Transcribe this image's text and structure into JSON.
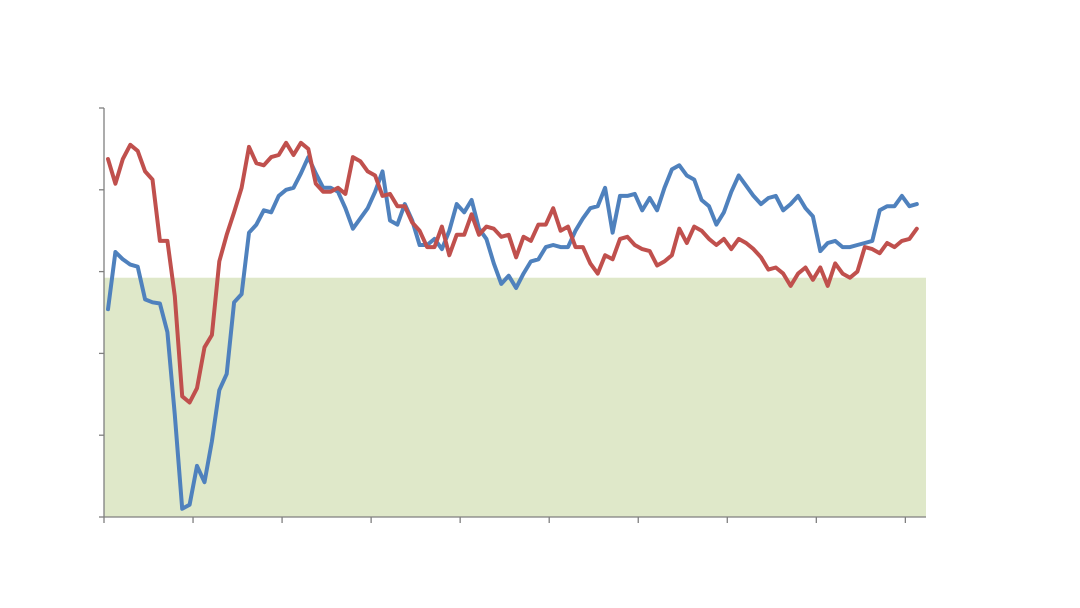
{
  "chart_data": {
    "type": "line",
    "title": "",
    "xlabel": "",
    "ylabel": "",
    "x_range": [
      0,
      110
    ],
    "x_ticks": [
      0,
      12,
      24,
      36,
      48,
      60,
      72,
      84,
      96,
      108
    ],
    "ylim": [
      0,
      100
    ],
    "y_ticks": [
      0,
      20,
      40,
      60,
      80,
      100
    ],
    "grid": false,
    "legend": "none",
    "shaded_band": {
      "y_from": 0,
      "y_to": 58.5,
      "color": "#dfe8c9"
    },
    "axis_color": "#7f7f7f",
    "series": [
      {
        "color": "#4f81bd",
        "points": [
          [
            0,
            50.8
          ],
          [
            1,
            64.8
          ],
          [
            2,
            63.0
          ],
          [
            3,
            61.7
          ],
          [
            4,
            61.2
          ],
          [
            5,
            53.2
          ],
          [
            6,
            52.5
          ],
          [
            7,
            52.2
          ],
          [
            8,
            45.2
          ],
          [
            9,
            25.0
          ],
          [
            10,
            2.0
          ],
          [
            11,
            3.0
          ],
          [
            12,
            12.5
          ],
          [
            13,
            8.5
          ],
          [
            14,
            18.5
          ],
          [
            15,
            31.0
          ],
          [
            16,
            35.0
          ],
          [
            17,
            52.5
          ],
          [
            18,
            54.5
          ],
          [
            19,
            69.5
          ],
          [
            20,
            71.5
          ],
          [
            21,
            75.0
          ],
          [
            22,
            74.5
          ],
          [
            23,
            78.5
          ],
          [
            24,
            80.0
          ],
          [
            25,
            80.5
          ],
          [
            26,
            84.0
          ],
          [
            27,
            88.0
          ],
          [
            28,
            84.0
          ],
          [
            29,
            80.5
          ],
          [
            30,
            80.5
          ],
          [
            31,
            79.5
          ],
          [
            32,
            75.5
          ],
          [
            33,
            70.5
          ],
          [
            34,
            73.0
          ],
          [
            35,
            75.5
          ],
          [
            36,
            79.5
          ],
          [
            37,
            84.5
          ],
          [
            38,
            72.5
          ],
          [
            39,
            71.5
          ],
          [
            40,
            76.5
          ],
          [
            41,
            72.5
          ],
          [
            42,
            66.5
          ],
          [
            43,
            66.5
          ],
          [
            44,
            68.0
          ],
          [
            45,
            65.5
          ],
          [
            46,
            70.0
          ],
          [
            47,
            76.5
          ],
          [
            48,
            74.5
          ],
          [
            49,
            77.5
          ],
          [
            50,
            70.5
          ],
          [
            51,
            68.0
          ],
          [
            52,
            62.0
          ],
          [
            53,
            57.0
          ],
          [
            54,
            59.0
          ],
          [
            55,
            56.0
          ],
          [
            56,
            59.5
          ],
          [
            57,
            62.5
          ],
          [
            58,
            63.0
          ],
          [
            59,
            66.0
          ],
          [
            60,
            66.5
          ],
          [
            61,
            66.0
          ],
          [
            62,
            66.0
          ],
          [
            63,
            70.0
          ],
          [
            64,
            73.0
          ],
          [
            65,
            75.5
          ],
          [
            66,
            76.0
          ],
          [
            67,
            80.5
          ],
          [
            68,
            69.5
          ],
          [
            69,
            78.5
          ],
          [
            70,
            78.5
          ],
          [
            71,
            79.0
          ],
          [
            72,
            75.0
          ],
          [
            73,
            78.0
          ],
          [
            74,
            75.0
          ],
          [
            75,
            80.5
          ],
          [
            76,
            85.0
          ],
          [
            77,
            86.0
          ],
          [
            78,
            83.5
          ],
          [
            79,
            82.5
          ],
          [
            80,
            77.5
          ],
          [
            81,
            76.0
          ],
          [
            82,
            71.5
          ],
          [
            83,
            74.5
          ],
          [
            84,
            79.5
          ],
          [
            85,
            83.5
          ],
          [
            86,
            81.0
          ],
          [
            87,
            78.5
          ],
          [
            88,
            76.5
          ],
          [
            89,
            78.0
          ],
          [
            90,
            78.5
          ],
          [
            91,
            75.0
          ],
          [
            92,
            76.5
          ],
          [
            93,
            78.5
          ],
          [
            94,
            75.5
          ],
          [
            95,
            73.5
          ],
          [
            96,
            65.0
          ],
          [
            97,
            67.0
          ],
          [
            98,
            67.5
          ],
          [
            99,
            66.0
          ],
          [
            100,
            66.0
          ],
          [
            101,
            66.5
          ],
          [
            102,
            67.0
          ],
          [
            103,
            67.5
          ],
          [
            104,
            75.0
          ],
          [
            105,
            76.0
          ],
          [
            106,
            76.0
          ],
          [
            107,
            78.5
          ],
          [
            108,
            76.0
          ],
          [
            109,
            76.5
          ]
        ]
      },
      {
        "color": "#c0504d",
        "points": [
          [
            0,
            87.5
          ],
          [
            1,
            81.5
          ],
          [
            2,
            87.5
          ],
          [
            3,
            91.0
          ],
          [
            4,
            89.5
          ],
          [
            5,
            84.5
          ],
          [
            6,
            82.5
          ],
          [
            7,
            67.5
          ],
          [
            8,
            67.5
          ],
          [
            9,
            54.0
          ],
          [
            10,
            29.5
          ],
          [
            11,
            28.0
          ],
          [
            12,
            31.5
          ],
          [
            13,
            41.5
          ],
          [
            14,
            44.5
          ],
          [
            15,
            62.5
          ],
          [
            16,
            69.0
          ],
          [
            17,
            74.5
          ],
          [
            18,
            80.5
          ],
          [
            19,
            90.5
          ],
          [
            20,
            86.5
          ],
          [
            21,
            86.0
          ],
          [
            22,
            88.0
          ],
          [
            23,
            88.5
          ],
          [
            24,
            91.5
          ],
          [
            25,
            88.5
          ],
          [
            26,
            91.5
          ],
          [
            27,
            90.0
          ],
          [
            28,
            81.5
          ],
          [
            29,
            79.5
          ],
          [
            30,
            79.5
          ],
          [
            31,
            80.5
          ],
          [
            32,
            79.0
          ],
          [
            33,
            88.0
          ],
          [
            34,
            87.0
          ],
          [
            35,
            84.5
          ],
          [
            36,
            83.5
          ],
          [
            37,
            78.5
          ],
          [
            38,
            79.0
          ],
          [
            39,
            76.0
          ],
          [
            40,
            76.0
          ],
          [
            41,
            72.0
          ],
          [
            42,
            70.0
          ],
          [
            43,
            66.0
          ],
          [
            44,
            66.0
          ],
          [
            45,
            71.0
          ],
          [
            46,
            64.0
          ],
          [
            47,
            69.0
          ],
          [
            48,
            69.0
          ],
          [
            49,
            74.0
          ],
          [
            50,
            69.0
          ],
          [
            51,
            71.0
          ],
          [
            52,
            70.5
          ],
          [
            53,
            68.5
          ],
          [
            54,
            69.0
          ],
          [
            55,
            63.5
          ],
          [
            56,
            68.5
          ],
          [
            57,
            67.5
          ],
          [
            58,
            71.5
          ],
          [
            59,
            71.5
          ],
          [
            60,
            75.5
          ],
          [
            61,
            70.0
          ],
          [
            62,
            71.0
          ],
          [
            63,
            66.0
          ],
          [
            64,
            66.0
          ],
          [
            65,
            62.0
          ],
          [
            66,
            59.5
          ],
          [
            67,
            64.0
          ],
          [
            68,
            63.0
          ],
          [
            69,
            68.0
          ],
          [
            70,
            68.5
          ],
          [
            71,
            66.5
          ],
          [
            72,
            65.5
          ],
          [
            73,
            65.0
          ],
          [
            74,
            61.5
          ],
          [
            75,
            62.5
          ],
          [
            76,
            64.0
          ],
          [
            77,
            70.5
          ],
          [
            78,
            67.0
          ],
          [
            79,
            71.0
          ],
          [
            80,
            70.0
          ],
          [
            81,
            68.0
          ],
          [
            82,
            66.5
          ],
          [
            83,
            68.0
          ],
          [
            84,
            65.5
          ],
          [
            85,
            68.0
          ],
          [
            86,
            67.0
          ],
          [
            87,
            65.5
          ],
          [
            88,
            63.5
          ],
          [
            89,
            60.5
          ],
          [
            90,
            61.0
          ],
          [
            91,
            59.5
          ],
          [
            92,
            56.5
          ],
          [
            93,
            59.5
          ],
          [
            94,
            61.0
          ],
          [
            95,
            58.0
          ],
          [
            96,
            61.0
          ],
          [
            97,
            56.5
          ],
          [
            98,
            62.0
          ],
          [
            99,
            59.5
          ],
          [
            100,
            58.5
          ],
          [
            101,
            60.0
          ],
          [
            102,
            66.0
          ],
          [
            103,
            65.5
          ],
          [
            104,
            64.5
          ],
          [
            105,
            67.0
          ],
          [
            106,
            66.0
          ],
          [
            107,
            67.5
          ],
          [
            108,
            68.0
          ],
          [
            109,
            70.5
          ]
        ]
      }
    ]
  }
}
